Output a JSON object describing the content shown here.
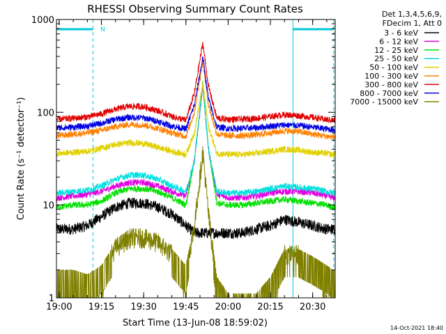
{
  "chart_data": {
    "type": "line",
    "title": "RHESSI Observing Summary Count Rates",
    "xlabel": "Start Time (13-Jun-08 18:59:02)",
    "ylabel": "Count Rate (s⁻¹ detector⁻¹)",
    "x_unit": "time (HH:MM, 13-Jun-2008)",
    "xlim": [
      "18:59:02",
      "20:38:00"
    ],
    "ylim": [
      1,
      1000
    ],
    "y_scale": "log",
    "x_ticks": [
      "19:00",
      "19:15",
      "19:30",
      "19:45",
      "20:00",
      "20:15",
      "20:30"
    ],
    "y_ticks": [
      "1",
      "10",
      "100",
      "1000"
    ],
    "legend_header": [
      "Det 1,3,4,5,6,9,",
      "FDecim 1, Att 0"
    ],
    "legend_position": "right",
    "footer_date": "14-Oct-2021 18:40",
    "attenuator_marker": "N",
    "night_intervals": [
      {
        "start": "18:59:02",
        "end": "19:12:00"
      },
      {
        "start": "20:23:00",
        "end": "20:37:30"
      }
    ],
    "series": [
      {
        "name": "3 - 6 keV",
        "color": "#000000",
        "times": [
          "19:00",
          "19:05",
          "19:10",
          "19:15",
          "19:20",
          "19:25",
          "19:30",
          "19:35",
          "19:40",
          "19:45",
          "19:48",
          "19:50",
          "19:52",
          "19:55",
          "20:00",
          "20:05",
          "20:10",
          "20:15",
          "20:20",
          "20:25",
          "20:30",
          "20:35",
          "20:37"
        ],
        "values": [
          5.5,
          5.5,
          6,
          7.5,
          9.5,
          10.5,
          10.5,
          9.5,
          8,
          6,
          5,
          5,
          5,
          5,
          5,
          5,
          5.5,
          6,
          7,
          6.5,
          6,
          5.5,
          5.5
        ]
      },
      {
        "name": "6 - 12 keV",
        "color": "#e000e0",
        "times": [
          "19:00",
          "19:05",
          "19:10",
          "19:15",
          "19:20",
          "19:25",
          "19:30",
          "19:35",
          "19:40",
          "19:45",
          "19:48",
          "19:51",
          "19:53",
          "19:56",
          "20:00",
          "20:05",
          "20:10",
          "20:15",
          "20:20",
          "20:25",
          "20:30",
          "20:35",
          "20:37"
        ],
        "values": [
          12,
          12.5,
          13,
          14,
          16,
          17.5,
          17.5,
          16,
          14,
          12.5,
          30,
          190,
          40,
          13,
          12,
          12,
          12.5,
          13.5,
          14,
          14,
          13.5,
          12.5,
          12
        ]
      },
      {
        "name": "12 - 25 keV",
        "color": "#00e000",
        "times": [
          "19:00",
          "19:05",
          "19:10",
          "19:15",
          "19:20",
          "19:25",
          "19:30",
          "19:35",
          "19:40",
          "19:45",
          "19:48",
          "19:51",
          "19:53",
          "19:56",
          "20:00",
          "20:05",
          "20:10",
          "20:15",
          "20:20",
          "20:25",
          "20:30",
          "20:35",
          "20:37"
        ],
        "values": [
          9.5,
          10,
          10,
          11,
          13.5,
          15,
          15,
          14,
          12,
          10,
          30,
          210,
          40,
          10.5,
          10,
          10,
          10.5,
          11,
          11.5,
          11,
          10.5,
          10,
          9.5
        ]
      },
      {
        "name": "25 - 50 keV",
        "color": "#00e0e0",
        "times": [
          "19:00",
          "19:05",
          "19:10",
          "19:15",
          "19:20",
          "19:25",
          "19:30",
          "19:35",
          "19:40",
          "19:45",
          "19:48",
          "19:51",
          "19:53",
          "19:56",
          "20:00",
          "20:05",
          "20:10",
          "20:15",
          "20:20",
          "20:25",
          "20:30",
          "20:35",
          "20:37"
        ],
        "values": [
          13.5,
          14,
          14.5,
          16,
          19,
          21,
          21,
          19,
          16,
          14,
          30,
          200,
          40,
          14,
          13.5,
          13.5,
          14,
          15,
          16,
          15.5,
          15,
          14,
          13.5
        ]
      },
      {
        "name": "50 - 100 keV",
        "color": "#e0d000",
        "times": [
          "19:00",
          "19:05",
          "19:10",
          "19:15",
          "19:20",
          "19:25",
          "19:30",
          "19:35",
          "19:40",
          "19:45",
          "19:48",
          "19:51",
          "19:53",
          "19:56",
          "20:00",
          "20:05",
          "20:10",
          "20:15",
          "20:20",
          "20:25",
          "20:30",
          "20:35",
          "20:37"
        ],
        "values": [
          36,
          37,
          38,
          41,
          45,
          47,
          46,
          42,
          38,
          35,
          60,
          200,
          70,
          36,
          35,
          35,
          36,
          38,
          40,
          39,
          37,
          36,
          35
        ]
      },
      {
        "name": "100 - 300 keV",
        "color": "#ff8000",
        "times": [
          "19:00",
          "19:05",
          "19:10",
          "19:15",
          "19:20",
          "19:25",
          "19:30",
          "19:35",
          "19:40",
          "19:45",
          "19:48",
          "19:51",
          "19:53",
          "19:56",
          "20:00",
          "20:05",
          "20:10",
          "20:15",
          "20:20",
          "20:25",
          "20:30",
          "20:35",
          "20:37"
        ],
        "values": [
          56,
          58,
          60,
          64,
          70,
          74,
          73,
          67,
          60,
          55,
          100,
          360,
          120,
          58,
          56,
          56,
          57,
          60,
          63,
          62,
          58,
          55,
          54
        ]
      },
      {
        "name": "300 - 800 keV",
        "color": "#e00000",
        "times": [
          "19:00",
          "19:05",
          "19:10",
          "19:15",
          "19:20",
          "19:25",
          "19:30",
          "19:35",
          "19:40",
          "19:45",
          "19:48",
          "19:51",
          "19:53",
          "19:56",
          "20:00",
          "20:05",
          "20:10",
          "20:15",
          "20:20",
          "20:25",
          "20:30",
          "20:35",
          "20:37"
        ],
        "values": [
          84,
          86,
          89,
          96,
          108,
          116,
          115,
          104,
          90,
          82,
          160,
          560,
          190,
          86,
          84,
          84,
          86,
          90,
          94,
          92,
          88,
          83,
          82
        ]
      },
      {
        "name": "800 - 7000 keV",
        "color": "#0000e0",
        "times": [
          "19:00",
          "19:05",
          "19:10",
          "19:15",
          "19:20",
          "19:25",
          "19:30",
          "19:35",
          "19:40",
          "19:45",
          "19:48",
          "19:51",
          "19:53",
          "19:56",
          "20:00",
          "20:05",
          "20:10",
          "20:15",
          "20:20",
          "20:25",
          "20:30",
          "20:35",
          "20:37"
        ],
        "values": [
          68,
          69,
          71,
          76,
          84,
          88,
          87,
          80,
          71,
          66,
          120,
          390,
          140,
          69,
          67,
          67,
          68,
          71,
          73,
          72,
          69,
          66,
          65
        ]
      },
      {
        "name": "7000 - 15000 keV",
        "color": "#808000",
        "times": [
          "19:00",
          "19:05",
          "19:10",
          "19:15",
          "19:20",
          "19:25",
          "19:30",
          "19:35",
          "19:40",
          "19:45",
          "19:48",
          "19:51",
          "19:53",
          "19:56",
          "20:00",
          "20:05",
          "20:10",
          "20:15",
          "20:20",
          "20:25",
          "20:30",
          "20:35",
          "20:37"
        ],
        "values": [
          1.8,
          1.8,
          1.6,
          2,
          3.5,
          4.5,
          4.5,
          4,
          3,
          2,
          6,
          38,
          8,
          1.5,
          1,
          1,
          1,
          1.5,
          3,
          3,
          2.5,
          2,
          1.8
        ]
      }
    ]
  }
}
